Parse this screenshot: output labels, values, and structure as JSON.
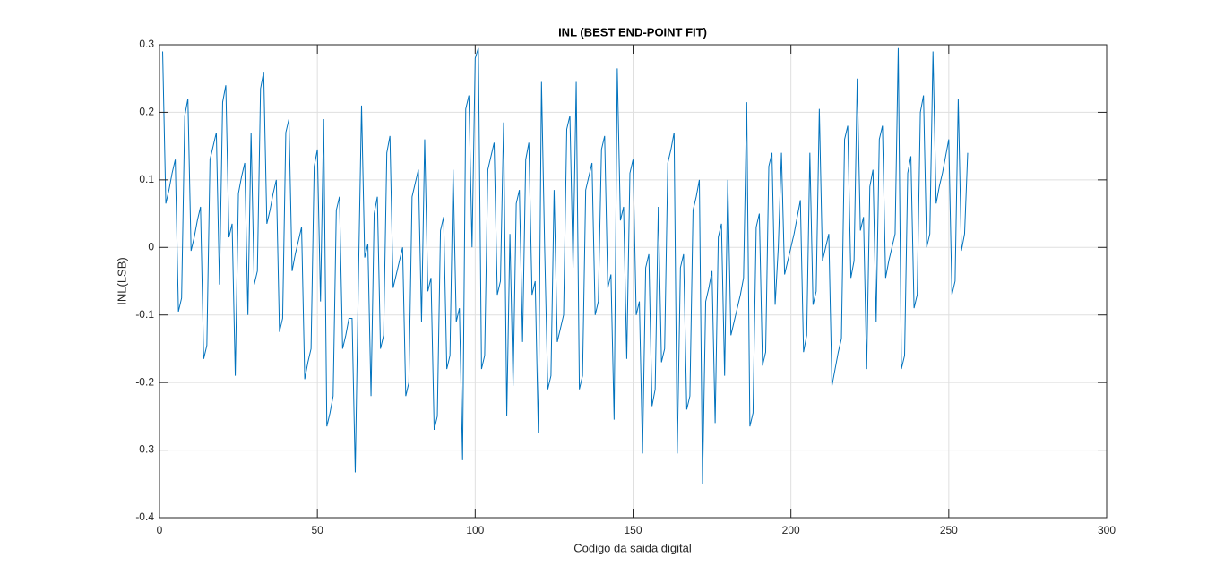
{
  "chart_data": {
    "type": "line",
    "title": "INL (BEST END-POINT FIT)",
    "x_label": "Codigo da saida digital",
    "y_label": "INL(LSB)",
    "color": "#0072bd",
    "grid": true,
    "xlim": [
      0,
      300
    ],
    "xticks": [
      0,
      50,
      100,
      150,
      200,
      250,
      300
    ],
    "ylim": [
      -0.4,
      0.3
    ],
    "yticks": [
      -0.4,
      -0.3,
      -0.2,
      -0.1,
      0,
      0.1,
      0.2,
      0.3
    ],
    "x": [
      1,
      2,
      3,
      4,
      5,
      6,
      7,
      8,
      9,
      10,
      11,
      12,
      13,
      14,
      15,
      16,
      17,
      18,
      19,
      20,
      21,
      22,
      23,
      24,
      25,
      26,
      27,
      28,
      29,
      30,
      31,
      32,
      33,
      34,
      35,
      36,
      37,
      38,
      39,
      40,
      41,
      42,
      43,
      44,
      45,
      46,
      47,
      48,
      49,
      50,
      51,
      52,
      53,
      54,
      55,
      56,
      57,
      58,
      59,
      60,
      61,
      62,
      63,
      64,
      65,
      66,
      67,
      68,
      69,
      70,
      71,
      72,
      73,
      74,
      75,
      76,
      77,
      78,
      79,
      80,
      81,
      82,
      83,
      84,
      85,
      86,
      87,
      88,
      89,
      90,
      91,
      92,
      93,
      94,
      95,
      96,
      97,
      98,
      99,
      100,
      101,
      102,
      103,
      104,
      105,
      106,
      107,
      108,
      109,
      110,
      111,
      112,
      113,
      114,
      115,
      116,
      117,
      118,
      119,
      120,
      121,
      122,
      123,
      124,
      125,
      126,
      127,
      128,
      129,
      130,
      131,
      132,
      133,
      134,
      135,
      136,
      137,
      138,
      139,
      140,
      141,
      142,
      143,
      144,
      145,
      146,
      147,
      148,
      149,
      150,
      151,
      152,
      153,
      154,
      155,
      156,
      157,
      158,
      159,
      160,
      161,
      162,
      163,
      164,
      165,
      166,
      167,
      168,
      169,
      170,
      171,
      172,
      173,
      174,
      175,
      176,
      177,
      178,
      179,
      180,
      181,
      182,
      183,
      184,
      185,
      186,
      187,
      188,
      189,
      190,
      191,
      192,
      193,
      194,
      195,
      196,
      197,
      198,
      199,
      200,
      201,
      202,
      203,
      204,
      205,
      206,
      207,
      208,
      209,
      210,
      211,
      212,
      213,
      214,
      215,
      216,
      217,
      218,
      219,
      220,
      221,
      222,
      223,
      224,
      225,
      226,
      227,
      228,
      229,
      230,
      231,
      232,
      233,
      234,
      235,
      236,
      237,
      238,
      239,
      240,
      241,
      242,
      243,
      244,
      245,
      246,
      247,
      248,
      249,
      250,
      251,
      252,
      253,
      254,
      255,
      256
    ],
    "values": [
      0.29,
      0.065,
      0.085,
      0.11,
      0.13,
      -0.095,
      -0.075,
      0.195,
      0.22,
      -0.005,
      0.015,
      0.04,
      0.06,
      -0.165,
      -0.145,
      0.13,
      0.15,
      0.17,
      -0.055,
      0.215,
      0.24,
      0.015,
      0.035,
      -0.19,
      0.08,
      0.105,
      0.125,
      -0.1,
      0.17,
      -0.055,
      -0.035,
      0.235,
      0.26,
      0.035,
      0.055,
      0.08,
      0.1,
      -0.125,
      -0.105,
      0.17,
      0.19,
      -0.035,
      -0.01,
      0.01,
      0.03,
      -0.195,
      -0.17,
      -0.15,
      0.12,
      0.145,
      -0.08,
      0.19,
      -0.265,
      -0.245,
      -0.22,
      0.055,
      0.075,
      -0.15,
      -0.13,
      -0.105,
      -0.105,
      -0.333,
      -0.05,
      0.21,
      -0.015,
      0.005,
      -0.22,
      0.05,
      0.075,
      -0.15,
      -0.13,
      0.14,
      0.165,
      -0.06,
      -0.04,
      -0.02,
      0.0,
      -0.22,
      -0.2,
      0.075,
      0.095,
      0.115,
      -0.11,
      0.16,
      -0.065,
      -0.045,
      -0.27,
      -0.25,
      0.025,
      0.045,
      -0.18,
      -0.16,
      0.115,
      -0.11,
      -0.09,
      -0.315,
      0.205,
      0.225,
      0.0,
      0.28,
      0.295,
      -0.18,
      -0.16,
      0.115,
      0.135,
      0.155,
      -0.07,
      -0.05,
      0.185,
      -0.25,
      0.02,
      -0.205,
      0.065,
      0.085,
      -0.14,
      0.13,
      0.155,
      -0.07,
      -0.05,
      -0.275,
      0.245,
      0.0,
      -0.21,
      -0.19,
      0.085,
      -0.14,
      -0.12,
      -0.1,
      0.175,
      0.195,
      -0.03,
      0.245,
      -0.21,
      -0.19,
      0.085,
      0.105,
      0.125,
      -0.1,
      -0.08,
      0.145,
      0.165,
      -0.06,
      -0.04,
      -0.255,
      0.265,
      0.04,
      0.06,
      -0.165,
      0.11,
      0.13,
      -0.1,
      -0.08,
      -0.305,
      -0.03,
      -0.01,
      -0.235,
      -0.21,
      0.06,
      -0.17,
      -0.15,
      0.125,
      0.145,
      0.17,
      -0.305,
      -0.03,
      -0.01,
      -0.24,
      -0.22,
      0.055,
      0.075,
      0.1,
      -0.35,
      -0.08,
      -0.06,
      -0.035,
      -0.26,
      0.015,
      0.035,
      -0.19,
      0.1,
      -0.13,
      -0.11,
      -0.09,
      -0.07,
      -0.045,
      0.215,
      -0.265,
      -0.245,
      0.03,
      0.05,
      -0.175,
      -0.155,
      0.12,
      0.14,
      -0.085,
      0.0,
      0.14,
      -0.04,
      -0.02,
      0.0,
      0.02,
      0.045,
      0.07,
      -0.155,
      -0.13,
      0.14,
      -0.085,
      -0.065,
      0.205,
      -0.02,
      0.0,
      0.02,
      -0.205,
      -0.18,
      -0.155,
      -0.135,
      0.16,
      0.18,
      -0.045,
      -0.02,
      0.25,
      0.025,
      0.045,
      -0.18,
      0.09,
      0.115,
      -0.11,
      0.16,
      0.18,
      -0.045,
      -0.02,
      0.0,
      0.02,
      0.295,
      -0.18,
      -0.16,
      0.11,
      0.135,
      -0.09,
      -0.07,
      0.2,
      0.225,
      0.0,
      0.02,
      0.29,
      0.065,
      0.09,
      0.11,
      0.135,
      0.16,
      -0.07,
      -0.05,
      0.22,
      -0.005,
      0.02,
      0.14
    ]
  }
}
